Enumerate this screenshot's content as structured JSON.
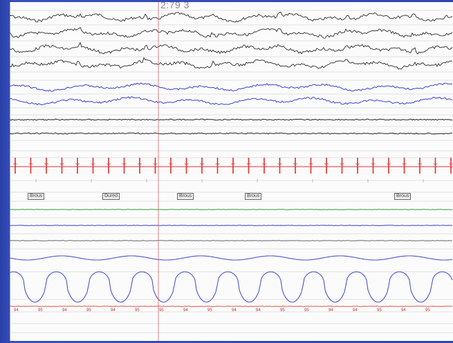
{
  "cursor": {
    "readout": "2:79 3"
  },
  "event_labels": [
    "Brous",
    "Dured",
    "Brous",
    "Brous",
    "Brous"
  ],
  "spo2_labels": [
    "94",
    "95",
    "94",
    "95",
    "94",
    "95",
    "95",
    "94",
    "95",
    "94",
    "94",
    "95",
    "95",
    "94",
    "94",
    "95",
    "94",
    "95"
  ],
  "channels": [
    {
      "name": "eeg-1",
      "kind": "eeg",
      "color": "#2a2a2a"
    },
    {
      "name": "eeg-2",
      "kind": "eeg",
      "color": "#2a2a2a"
    },
    {
      "name": "eeg-3",
      "kind": "eeg",
      "color": "#2a2a2a"
    },
    {
      "name": "eeg-4",
      "kind": "eeg",
      "color": "#2a2a2a"
    },
    {
      "name": "eog-left",
      "kind": "eog",
      "color": "#3a3fd0"
    },
    {
      "name": "eog-right",
      "kind": "eog",
      "color": "#3a3fd0"
    },
    {
      "name": "chin-emg",
      "kind": "emg",
      "color": "#222222"
    },
    {
      "name": "leg-emg",
      "kind": "emg",
      "color": "#222222"
    },
    {
      "name": "ecg",
      "kind": "ecg",
      "color": "#e03030"
    },
    {
      "name": "snore",
      "kind": "flat",
      "color": "#2fa02f"
    },
    {
      "name": "position",
      "kind": "flat",
      "color": "#3a3fd0"
    },
    {
      "name": "airflow",
      "kind": "flat",
      "color": "#666666"
    },
    {
      "name": "thorax",
      "kind": "resp",
      "color": "#4a55d0"
    },
    {
      "name": "abdomen",
      "kind": "resp",
      "color": "#4a55d0"
    },
    {
      "name": "spo2",
      "kind": "flat",
      "color": "#e05050"
    }
  ],
  "colors": {
    "frame": "#2b40a8",
    "cursor_line": "#e06060",
    "grid": "#c8c8c8"
  }
}
